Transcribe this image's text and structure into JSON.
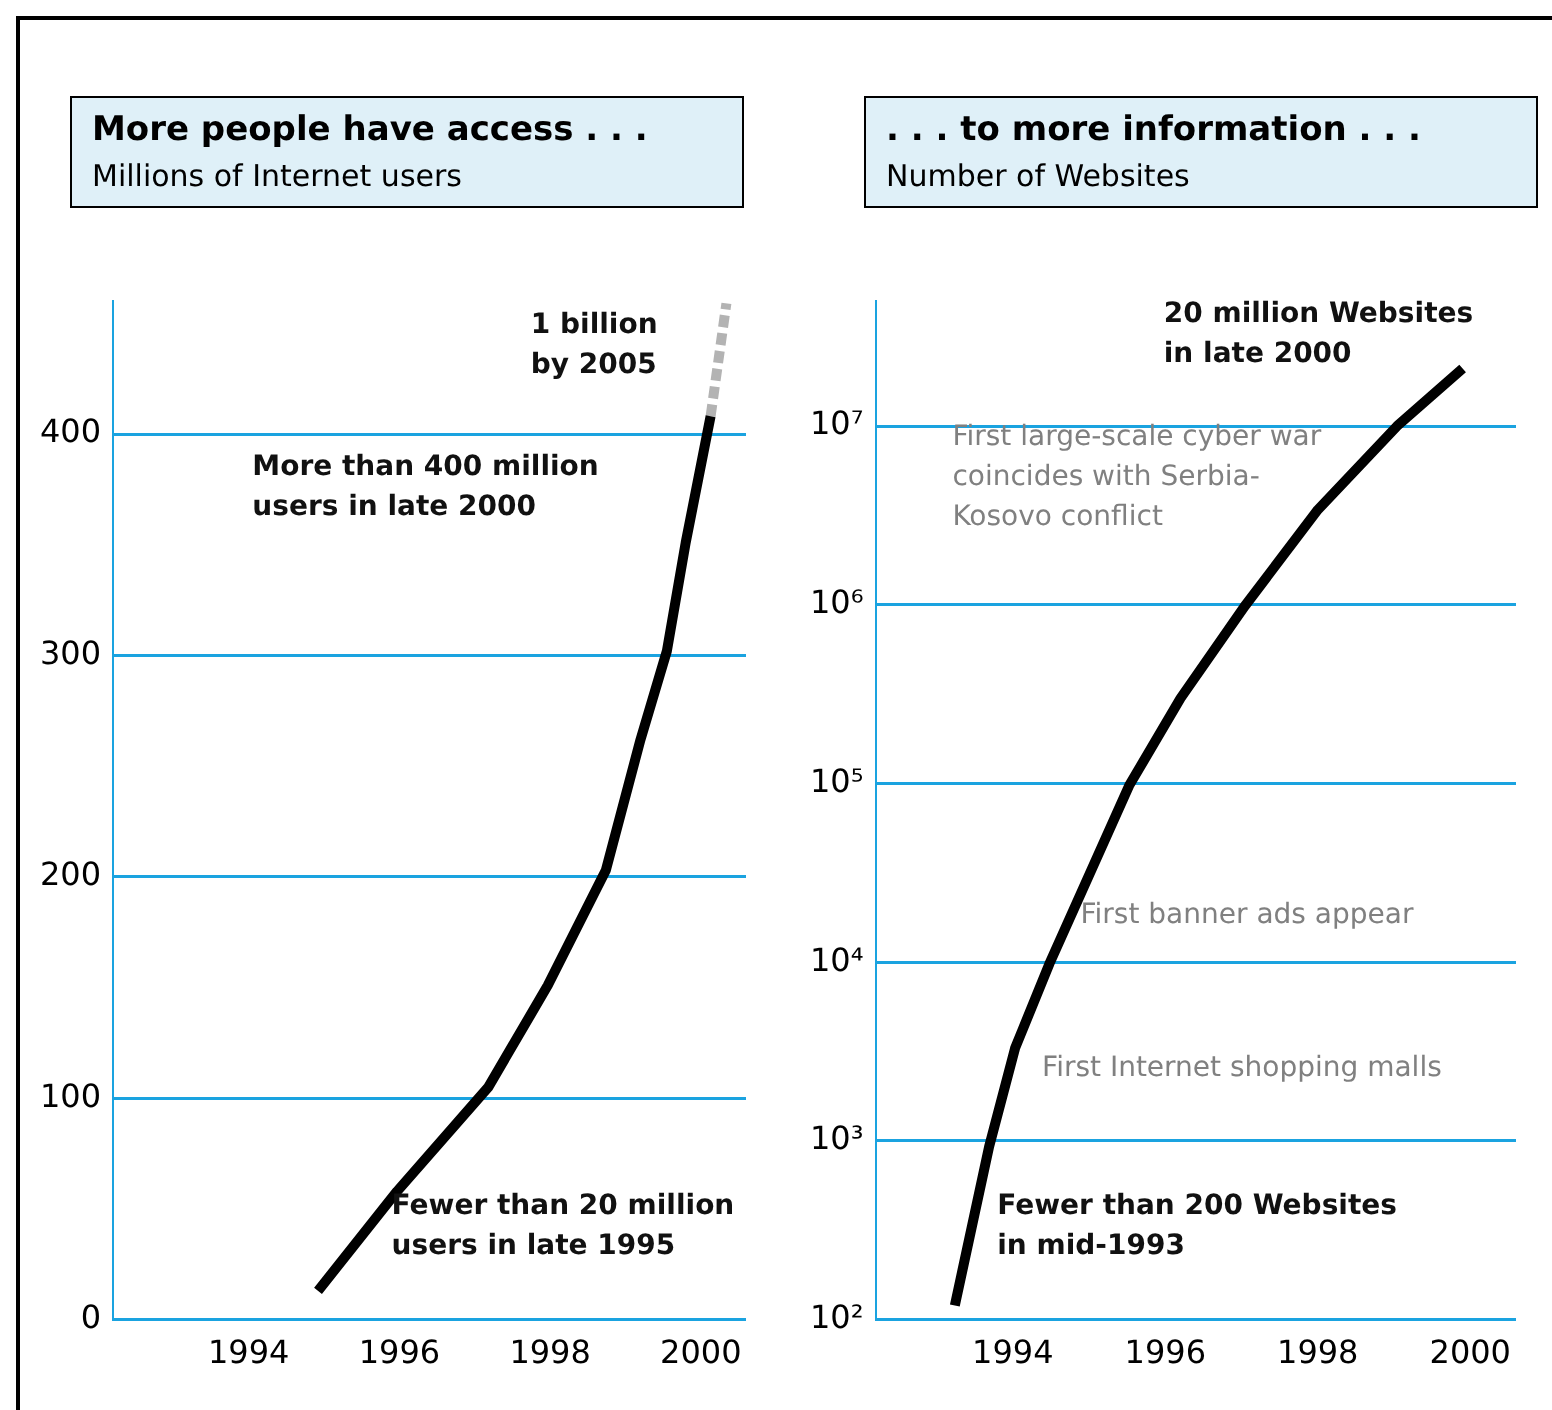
{
  "chart_data": [
    {
      "type": "line",
      "title": "More people have access . . .",
      "subtitle": "Millions of Internet users",
      "xlim": [
        1992.2,
        2000.6
      ],
      "xticks": [
        1994,
        1996,
        1998,
        2000
      ],
      "ylim": [
        0,
        460
      ],
      "yticks": [
        0,
        100,
        200,
        300,
        400
      ],
      "grid": "y",
      "legend": false,
      "marker": "none",
      "series": [
        {
          "color": "#000000",
          "x": [
            1994.92,
            1995.97,
            1997.18,
            1997.97,
            1998.74,
            1999.2,
            1999.55,
            1999.8,
            2000.13
          ],
          "values": [
            13,
            58,
            105,
            151,
            203,
            262,
            302,
            351,
            408
          ],
          "line_style": "solid"
        },
        {
          "color": "#b3b3b3",
          "x": [
            2000.13,
            2000.34
          ],
          "values": [
            408,
            459
          ],
          "line_style": "dashed"
        }
      ],
      "annotations": [
        "1 billion\nby 2005",
        "More than 400 million\nusers in late 2000",
        "Fewer than 20 million\nusers in late 1995"
      ]
    },
    {
      "type": "line",
      "title": ". . . to more information . . .",
      "subtitle": "Number of Websites",
      "xlim": [
        1992.2,
        2000.6
      ],
      "xticks": [
        1994,
        1996,
        1998,
        2000
      ],
      "ylim": [
        100,
        50000000
      ],
      "log": "y",
      "yticks": [
        {
          "value": 100,
          "label": "10²"
        },
        {
          "value": 1000,
          "label": "10³"
        },
        {
          "value": 10000,
          "label": "10⁴"
        },
        {
          "value": 100000,
          "label": "10⁵"
        },
        {
          "value": 1000000,
          "label": "10⁶"
        },
        {
          "value": 10000000,
          "label": "10⁷"
        }
      ],
      "grid": "y",
      "legend": false,
      "marker": "none",
      "series": [
        {
          "color": "#000000",
          "x": [
            1993.24,
            1993.69,
            1994.03,
            1994.48,
            1995.53,
            1996.2,
            1997.04,
            1998.0,
            1999.04,
            1999.9
          ],
          "values": [
            120,
            930,
            3300,
            9800,
            98000,
            300000,
            980000,
            3400000,
            10000000,
            21000000
          ],
          "line_style": "solid"
        }
      ],
      "annotations": [
        "20 million Websites\nin late 2000",
        "First large-scale cyber war\ncoincides with Serbia-\nKosovo conflict",
        "First banner ads appear",
        "First Internet shopping malls",
        "Fewer than 200 Websites\nin mid-1993"
      ]
    }
  ]
}
